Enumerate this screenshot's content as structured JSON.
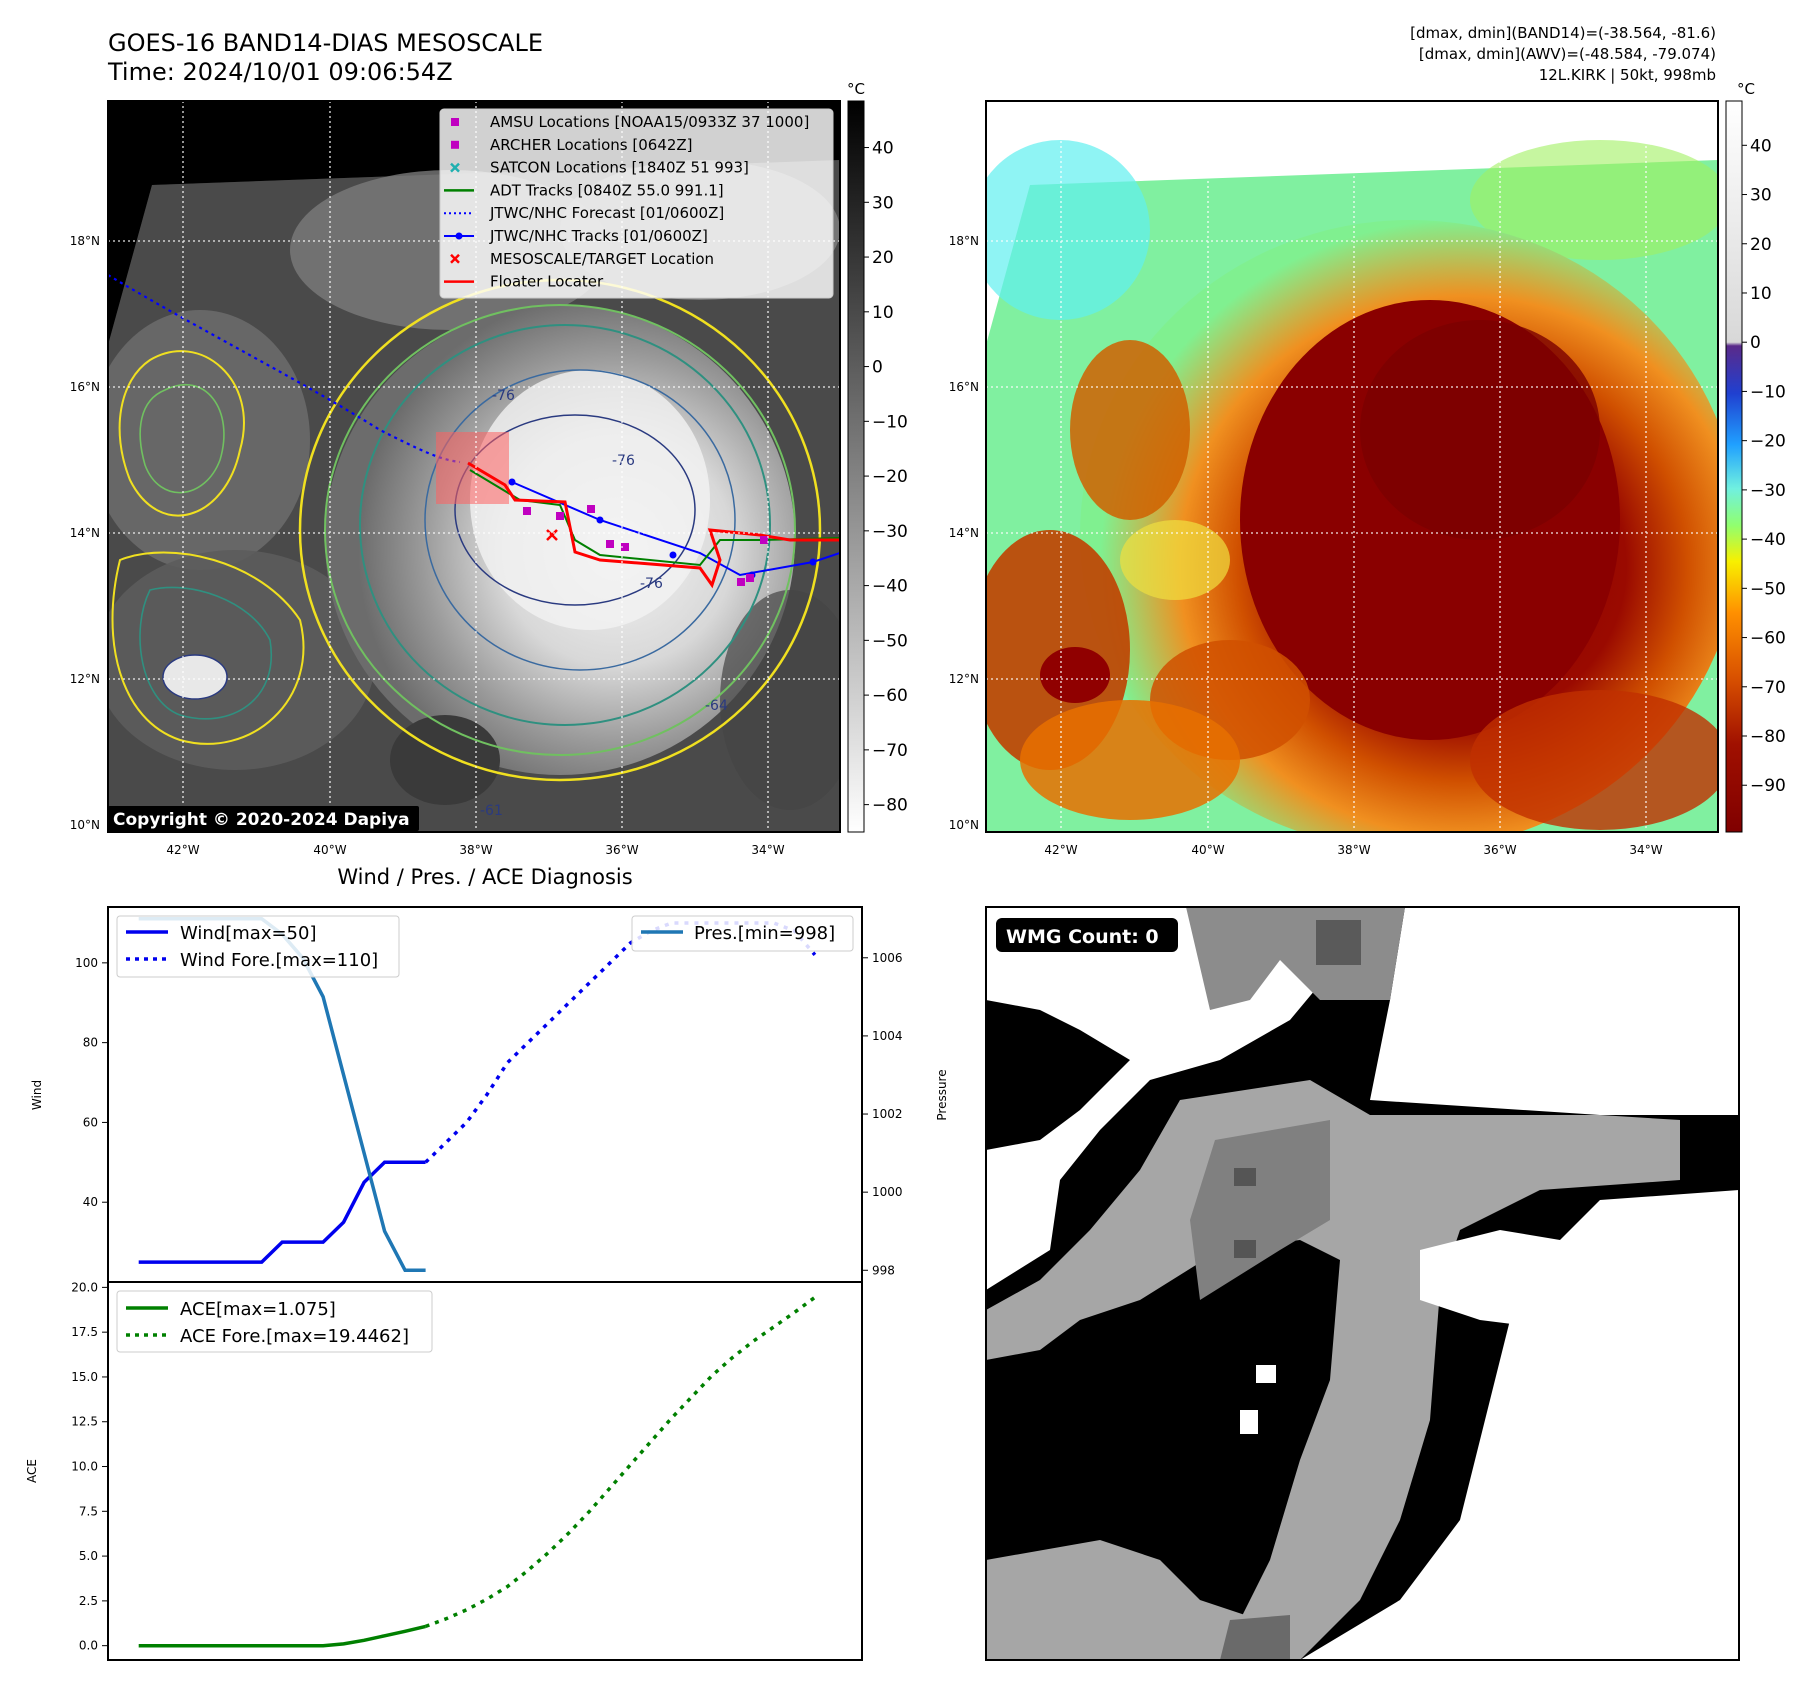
{
  "header": {
    "title_line1": "GOES-16 BAND14-DIAS MESOSCALE",
    "title_line2": "Time: 2024/10/01 09:06:54Z",
    "info_line1": "[dmax, dmin](BAND14)=(-38.564, -81.6)",
    "info_line2": "[dmax, dmin](AWV)=(-48.584, -79.074)",
    "info_line3": "12L.KIRK | 50kt, 998mb"
  },
  "map": {
    "lat_labels": [
      "18°N",
      "16°N",
      "14°N",
      "12°N",
      "10°N"
    ],
    "lon_labels": [
      "42°W",
      "40°W",
      "38°W",
      "36°W",
      "34°W"
    ],
    "copyright": "Copyright © 2020-2024 Dapiya",
    "contour_labels": [
      "-76",
      "-76",
      "-76",
      "-64",
      "-61"
    ]
  },
  "legend": {
    "items": [
      {
        "label": "AMSU Locations [NOAA15/0933Z 37 1000]",
        "color": "#c000c0",
        "marker": "square"
      },
      {
        "label": "ARCHER Locations [0642Z]",
        "color": "#c000c0",
        "marker": "square"
      },
      {
        "label": "SATCON Locations [1840Z 51 993]",
        "color": "#20b0b0",
        "marker": "x"
      },
      {
        "label": "ADT Tracks [0840Z 55.0 991.1]",
        "color": "#008000",
        "marker": "line"
      },
      {
        "label": "JTWC/NHC Forecast [01/0600Z]",
        "color": "#0000ff",
        "marker": "dotted"
      },
      {
        "label": "JTWC/NHC Tracks [01/0600Z]",
        "color": "#0000ff",
        "marker": "line-dot"
      },
      {
        "label": "MESOSCALE/TARGET Location",
        "color": "#ff0000",
        "marker": "x"
      },
      {
        "label": "Floater Locater",
        "color": "#ff0000",
        "marker": "line"
      }
    ]
  },
  "colorbar_gray": {
    "unit": "°C",
    "ticks": [
      "40",
      "30",
      "20",
      "10",
      "0",
      "−10",
      "−20",
      "−30",
      "−40",
      "−50",
      "−60",
      "−70",
      "−80"
    ]
  },
  "colorbar_color": {
    "unit": "°C",
    "ticks": [
      "40",
      "30",
      "20",
      "10",
      "0",
      "−10",
      "−20",
      "−30",
      "−40",
      "−50",
      "−60",
      "−70",
      "−80",
      "−90"
    ]
  },
  "wmg": {
    "label": "WMG Count: 0"
  },
  "chart_data": [
    {
      "type": "line",
      "title": "Wind / Pres. / ACE Diagnosis",
      "ylabel": "Wind",
      "y2label": "Pressure",
      "ylim": [
        20,
        114
      ],
      "y2lim": [
        997.7,
        1007.3
      ],
      "yticks": [
        "100",
        "80",
        "60",
        "40"
      ],
      "y2ticks": [
        "1006",
        "1004",
        "1002",
        "1000",
        "998"
      ],
      "series": [
        {
          "name": "Wind[max=50]",
          "axis": "left",
          "style": "solid",
          "color": "#0000ee",
          "x": [
            0,
            1,
            2,
            3,
            4,
            5,
            6,
            7,
            8,
            9,
            10,
            11,
            12,
            13,
            14
          ],
          "values": [
            25,
            25,
            25,
            25,
            25,
            25,
            25,
            30,
            30,
            30,
            35,
            45,
            50,
            50,
            50
          ]
        },
        {
          "name": "Wind Fore.[max=110]",
          "axis": "left",
          "style": "dotted",
          "color": "#0000ee",
          "x": [
            14,
            15,
            16,
            17,
            18,
            19,
            20,
            21,
            22,
            23,
            24,
            25,
            26,
            27,
            28,
            29,
            30,
            31,
            32,
            33
          ],
          "values": [
            50,
            55,
            60,
            67,
            75,
            80,
            85,
            90,
            95,
            100,
            105,
            108,
            110,
            110,
            110,
            110,
            110,
            110,
            108,
            102
          ]
        },
        {
          "name": "Pres.[min=998]",
          "axis": "right",
          "style": "solid",
          "color": "#1f77b4",
          "x": [
            0,
            1,
            2,
            3,
            4,
            5,
            6,
            7,
            8,
            9,
            10,
            11,
            12,
            13,
            14
          ],
          "values": [
            1007,
            1007,
            1007,
            1007,
            1007,
            1007,
            1007,
            1006.6,
            1006,
            1005,
            1003,
            1001,
            999,
            998,
            998
          ]
        }
      ]
    },
    {
      "type": "line",
      "ylabel": "ACE",
      "ylim": [
        -0.8,
        20.3
      ],
      "yticks": [
        "20.0",
        "17.5",
        "15.0",
        "12.5",
        "10.0",
        "7.5",
        "5.0",
        "2.5",
        "0.0"
      ],
      "series": [
        {
          "name": "ACE[max=1.075]",
          "style": "solid",
          "color": "#008000",
          "x": [
            0,
            1,
            2,
            3,
            4,
            5,
            6,
            7,
            8,
            9,
            10,
            11,
            12,
            13,
            14
          ],
          "values": [
            0,
            0,
            0,
            0,
            0,
            0,
            0,
            0,
            0,
            0,
            0.1,
            0.3,
            0.55,
            0.8,
            1.075
          ]
        },
        {
          "name": "ACE Fore.[max=19.4462]",
          "style": "dotted",
          "color": "#008000",
          "x": [
            14,
            15,
            16,
            17,
            18,
            19,
            20,
            21,
            22,
            23,
            24,
            25,
            26,
            27,
            28,
            29,
            30,
            31,
            32,
            33
          ],
          "values": [
            1.075,
            1.5,
            2.0,
            2.6,
            3.3,
            4.2,
            5.2,
            6.3,
            7.5,
            8.8,
            10.1,
            11.4,
            12.7,
            13.9,
            15.1,
            16.1,
            17.0,
            17.8,
            18.6,
            19.4462
          ]
        }
      ]
    }
  ]
}
